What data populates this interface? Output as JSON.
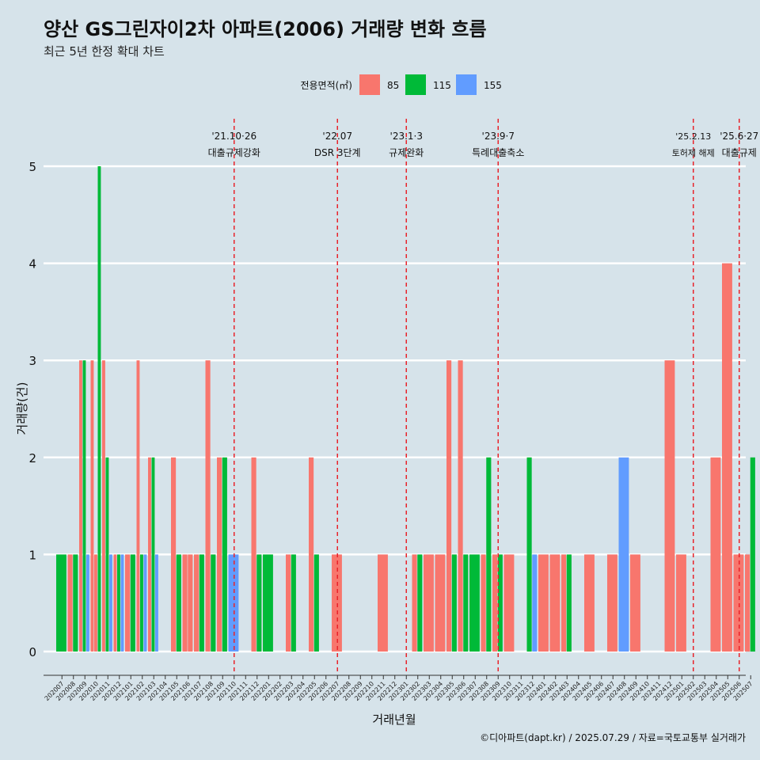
{
  "colors": {
    "background": "#d6e3ea",
    "85": "#f8766d",
    "115": "#00ba38",
    "155": "#619cff",
    "event_line": "#e8232b"
  },
  "chart_data": {
    "type": "bar",
    "title": "양산 GS그린자이2차 아파트(2006) 거래량 변화 흐름",
    "subtitle": "최근 5년 한정 확대 차트",
    "xlabel": "거래년월",
    "ylabel": "거래량(건)",
    "ylim": [
      0,
      5
    ],
    "y_ticks": [
      0,
      1,
      2,
      3,
      4,
      5
    ],
    "grid": "horizontal",
    "legend": {
      "title": "전용면적(㎡)",
      "position": "top"
    },
    "caption": "©디아파트(dapt.kr) / 2025.07.29 / 자료=국토교통부 실거래가",
    "x_tick_labels": [
      "202007",
      "202008",
      "202009",
      "202010",
      "202011",
      "202012",
      "202101",
      "202102",
      "202103",
      "202104",
      "202105",
      "202106",
      "202107",
      "202108",
      "202109",
      "202110",
      "202111",
      "202112",
      "202201",
      "202202",
      "202203",
      "202204",
      "202205",
      "202206",
      "202207",
      "202208",
      "202209",
      "202210",
      "202211",
      "202212",
      "202301",
      "202302",
      "202303",
      "202304",
      "202305",
      "202306",
      "202307",
      "202308",
      "202309",
      "202310",
      "202311",
      "202312",
      "202401",
      "202402",
      "202403",
      "202404",
      "202405",
      "202406",
      "202407",
      "202408",
      "202409",
      "202410",
      "202411",
      "202412",
      "202501",
      "202502",
      "202503",
      "202504",
      "202505",
      "202506",
      "202507"
    ],
    "series": [
      {
        "name": "85",
        "points": [
          [
            "202008",
            1
          ],
          [
            "202009",
            3
          ],
          [
            "202010",
            3
          ],
          [
            "202010",
            1
          ],
          [
            "202011",
            3
          ],
          [
            "202012",
            1
          ],
          [
            "202101",
            1
          ],
          [
            "202102",
            3
          ],
          [
            "202103",
            2
          ],
          [
            "202105",
            2
          ],
          [
            "202106",
            1
          ],
          [
            "202106",
            1
          ],
          [
            "202107",
            1
          ],
          [
            "202108",
            3
          ],
          [
            "202109",
            2
          ],
          [
            "202112",
            2
          ],
          [
            "202203",
            1
          ],
          [
            "202205",
            2
          ],
          [
            "202207",
            1
          ],
          [
            "202211",
            1
          ],
          [
            "202302",
            1
          ],
          [
            "202303",
            1
          ],
          [
            "202304",
            1
          ],
          [
            "202305",
            3
          ],
          [
            "202306",
            3
          ],
          [
            "202308",
            1
          ],
          [
            "202309",
            1
          ],
          [
            "202310",
            1
          ],
          [
            "202401",
            1
          ],
          [
            "202402",
            1
          ],
          [
            "202403",
            1
          ],
          [
            "202405",
            1
          ],
          [
            "202407",
            1
          ],
          [
            "202409",
            1
          ],
          [
            "202412",
            3
          ],
          [
            "202501",
            1
          ],
          [
            "202504",
            2
          ],
          [
            "202505",
            4
          ],
          [
            "202506",
            1
          ],
          [
            "202507",
            1
          ]
        ]
      },
      {
        "name": "115",
        "points": [
          [
            "202007",
            1
          ],
          [
            "202008",
            1
          ],
          [
            "202009",
            3
          ],
          [
            "202010",
            5
          ],
          [
            "202011",
            2
          ],
          [
            "202012",
            1
          ],
          [
            "202101",
            1
          ],
          [
            "202102",
            1
          ],
          [
            "202103",
            2
          ],
          [
            "202105",
            1
          ],
          [
            "202107",
            1
          ],
          [
            "202108",
            1
          ],
          [
            "202109",
            2
          ],
          [
            "202112",
            1
          ],
          [
            "202201",
            1
          ],
          [
            "202203",
            1
          ],
          [
            "202205",
            1
          ],
          [
            "202302",
            1
          ],
          [
            "202305",
            1
          ],
          [
            "202306",
            1
          ],
          [
            "202307",
            1
          ],
          [
            "202308",
            2
          ],
          [
            "202309",
            1
          ],
          [
            "202312",
            2
          ],
          [
            "202403",
            1
          ],
          [
            "202507",
            2
          ]
        ]
      },
      {
        "name": "155",
        "points": [
          [
            "202009",
            1
          ],
          [
            "202011",
            1
          ],
          [
            "202012",
            1
          ],
          [
            "202102",
            1
          ],
          [
            "202103",
            1
          ],
          [
            "202110",
            1
          ],
          [
            "202312",
            1
          ],
          [
            "202408",
            2
          ]
        ]
      }
    ],
    "annotations": [
      {
        "date": "'21.10·26",
        "label": "대출규제강화",
        "at": "202110"
      },
      {
        "date": "'22.07",
        "label": "DSR 3단계",
        "at": "202207"
      },
      {
        "date": "'23.1·3",
        "label": "규제완화",
        "at": "202301"
      },
      {
        "date": "'23.9·7",
        "label": "특례대출축소",
        "at": "202309"
      },
      {
        "date": "'25.2.13",
        "label": "토허제 해제",
        "at": "202502"
      },
      {
        "date": "'25.6·27",
        "label": "대출규제",
        "at": "202506"
      }
    ]
  }
}
